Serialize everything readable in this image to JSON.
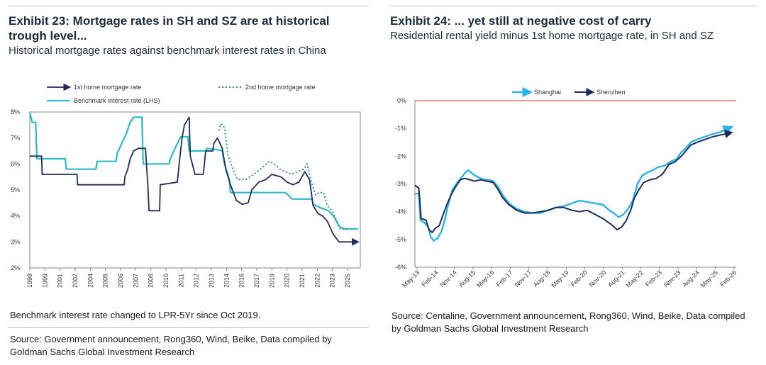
{
  "exhibit23": {
    "title": "Exhibit 23: Mortgage rates in SH and SZ are at historical trough level...",
    "subtitle": "Historical mortgage rates against benchmark interest rates in China",
    "note": "Benchmark interest rate changed to LPR-5Yr since Oct 2019.",
    "source": "Source: Government announcement, Rong360, Wind, Beike, Data compiled by Goldman Sachs Global Investment Research"
  },
  "exhibit24": {
    "title": "Exhibit 24: ... yet still at negative cost of carry",
    "subtitle": "Residential rental yield minus 1st home mortgage rate, in SH and SZ",
    "source": "Source: Centaline, Government announcement, Rong360, Wind, Beike, Data compiled by Goldman Sachs Global Investment Research"
  },
  "chart_data": [
    {
      "type": "line",
      "title": "Historical mortgage rates against benchmark interest rates in China",
      "ylim": [
        2,
        8
      ],
      "y_ticks": [
        "2%",
        "3%",
        "4%",
        "5%",
        "6%",
        "7%",
        "8%"
      ],
      "x_ticks": [
        "1998",
        "1999",
        "2001",
        "2002",
        "2004",
        "2005",
        "2006",
        "2007",
        "2008",
        "2010",
        "2011",
        "2012",
        "2013",
        "2014",
        "2016",
        "2017",
        "2019",
        "2020",
        "2021",
        "2022",
        "2023",
        "2025"
      ],
      "legend": [
        "1st home mortgage rate",
        "2nd home mortgage rate",
        "Benchmark interest rate (LHS)"
      ],
      "colors": {
        "first": "#1f2d5c",
        "second": "#2e8f8a",
        "bench": "#2fb8c6"
      },
      "series": [
        {
          "name": "1st home mortgage rate",
          "points": [
            [
              1998.0,
              6.3
            ],
            [
              1999.0,
              6.3
            ],
            [
              1999.05,
              5.6
            ],
            [
              2002.0,
              5.6
            ],
            [
              2002.05,
              5.2
            ],
            [
              2006.0,
              5.2
            ],
            [
              2006.05,
              5.5
            ],
            [
              2006.3,
              5.8
            ],
            [
              2006.5,
              6.2
            ],
            [
              2006.8,
              6.5
            ],
            [
              2007.2,
              6.6
            ],
            [
              2007.8,
              6.6
            ],
            [
              2008.0,
              5.2
            ],
            [
              2008.1,
              4.2
            ],
            [
              2009.0,
              4.2
            ],
            [
              2009.05,
              5.2
            ],
            [
              2010.5,
              5.3
            ],
            [
              2010.7,
              6.2
            ],
            [
              2010.9,
              7.0
            ],
            [
              2011.1,
              7.5
            ],
            [
              2011.5,
              7.8
            ],
            [
              2011.6,
              6.3
            ],
            [
              2012.0,
              5.6
            ],
            [
              2012.7,
              5.6
            ],
            [
              2012.9,
              6.5
            ],
            [
              2013.5,
              6.5
            ],
            [
              2013.6,
              6.8
            ],
            [
              2013.9,
              7.0
            ],
            [
              2014.3,
              6.6
            ],
            [
              2014.6,
              5.8
            ],
            [
              2015.0,
              5.2
            ],
            [
              2015.5,
              4.6
            ],
            [
              2016.0,
              4.45
            ],
            [
              2016.5,
              4.5
            ],
            [
              2016.8,
              5.0
            ],
            [
              2017.4,
              5.3
            ],
            [
              2018.0,
              5.4
            ],
            [
              2018.5,
              5.6
            ],
            [
              2019.3,
              5.5
            ],
            [
              2019.8,
              5.3
            ],
            [
              2020.3,
              5.2
            ],
            [
              2020.8,
              5.3
            ],
            [
              2021.3,
              5.7
            ],
            [
              2021.7,
              5.4
            ],
            [
              2022.0,
              4.4
            ],
            [
              2022.4,
              4.1
            ],
            [
              2022.8,
              4.0
            ],
            [
              2023.2,
              3.8
            ],
            [
              2023.7,
              3.3
            ],
            [
              2024.2,
              3.0
            ],
            [
              2025.2,
              3.0
            ],
            [
              2025.8,
              3.0
            ]
          ]
        },
        {
          "name": "2nd home mortgage rate",
          "points": [
            [
              2014.0,
              7.3
            ],
            [
              2014.2,
              7.55
            ],
            [
              2014.5,
              7.4
            ],
            [
              2014.8,
              6.3
            ],
            [
              2015.2,
              5.8
            ],
            [
              2015.6,
              5.4
            ],
            [
              2016.3,
              5.4
            ],
            [
              2016.8,
              5.55
            ],
            [
              2017.3,
              5.7
            ],
            [
              2017.8,
              5.9
            ],
            [
              2018.3,
              6.1
            ],
            [
              2018.7,
              6.0
            ],
            [
              2019.2,
              5.8
            ],
            [
              2019.6,
              5.7
            ],
            [
              2020.2,
              5.6
            ],
            [
              2020.7,
              5.7
            ],
            [
              2021.2,
              5.8
            ],
            [
              2021.5,
              6.0
            ],
            [
              2021.8,
              5.4
            ],
            [
              2022.2,
              4.8
            ],
            [
              2022.5,
              4.9
            ],
            [
              2022.9,
              4.9
            ],
            [
              2023.2,
              4.4
            ],
            [
              2023.6,
              4.2
            ],
            [
              2024.0,
              3.8
            ],
            [
              2024.3,
              3.5
            ],
            [
              2025.0,
              3.5
            ]
          ]
        },
        {
          "name": "Benchmark interest rate (LHS)",
          "points": [
            [
              1998.0,
              8.0
            ],
            [
              1998.2,
              7.6
            ],
            [
              1998.5,
              7.6
            ],
            [
              1998.6,
              6.2
            ],
            [
              2001.0,
              6.2
            ],
            [
              2001.1,
              5.8
            ],
            [
              2003.6,
              5.8
            ],
            [
              2003.7,
              6.1
            ],
            [
              2005.3,
              6.1
            ],
            [
              2005.4,
              6.4
            ],
            [
              2005.8,
              6.8
            ],
            [
              2006.2,
              7.2
            ],
            [
              2006.5,
              7.6
            ],
            [
              2006.8,
              7.8
            ],
            [
              2007.5,
              7.8
            ],
            [
              2007.6,
              6.0
            ],
            [
              2009.8,
              6.0
            ],
            [
              2009.9,
              6.2
            ],
            [
              2010.4,
              6.7
            ],
            [
              2010.8,
              7.05
            ],
            [
              2011.4,
              7.05
            ],
            [
              2011.5,
              6.5
            ],
            [
              2012.0,
              6.5
            ],
            [
              2012.9,
              6.5
            ],
            [
              2013.0,
              6.6
            ],
            [
              2013.9,
              6.55
            ],
            [
              2014.3,
              6.5
            ],
            [
              2014.5,
              6.0
            ],
            [
              2014.9,
              5.4
            ],
            [
              2015.0,
              4.9
            ],
            [
              2019.6,
              4.9
            ],
            [
              2019.8,
              4.85
            ],
            [
              2020.2,
              4.65
            ],
            [
              2021.9,
              4.65
            ],
            [
              2022.0,
              4.45
            ],
            [
              2022.7,
              4.3
            ],
            [
              2023.3,
              4.2
            ],
            [
              2023.8,
              3.95
            ],
            [
              2024.2,
              3.6
            ],
            [
              2024.6,
              3.5
            ],
            [
              2025.8,
              3.5
            ]
          ]
        }
      ]
    },
    {
      "type": "line",
      "title": "Residential rental yield minus 1st home mortgage rate, in SH and SZ",
      "ylim": [
        -6,
        0
      ],
      "y_ticks": [
        "0%",
        "-1%",
        "-2%",
        "-3%",
        "-4%",
        "-5%",
        "-6%"
      ],
      "x_ticks": [
        "May-13",
        "Feb-14",
        "Nov-14",
        "Aug-15",
        "May-16",
        "Feb-17",
        "Nov-17",
        "Aug-18",
        "May-19",
        "Feb-20",
        "Nov-20",
        "Aug-21",
        "May-22",
        "Feb-23",
        "Nov-23",
        "Aug-24",
        "May-25",
        "Feb-26"
      ],
      "legend": [
        "Shanghai",
        "Shenzhen"
      ],
      "colors": {
        "Shanghai": "#2db2e6",
        "Shenzhen": "#1c2b5a"
      },
      "series": [
        {
          "name": "Shanghai",
          "points": [
            [
              0.0,
              -3.35
            ],
            [
              0.25,
              -3.35
            ],
            [
              0.35,
              -4.3
            ],
            [
              0.6,
              -4.4
            ],
            [
              0.85,
              -4.55
            ],
            [
              1.0,
              -4.9
            ],
            [
              1.2,
              -5.05
            ],
            [
              1.45,
              -4.95
            ],
            [
              1.7,
              -4.7
            ],
            [
              1.9,
              -4.3
            ],
            [
              2.1,
              -3.8
            ],
            [
              2.4,
              -3.2
            ],
            [
              2.7,
              -2.95
            ],
            [
              3.0,
              -2.75
            ],
            [
              3.2,
              -2.6
            ],
            [
              3.4,
              -2.5
            ],
            [
              3.7,
              -2.65
            ],
            [
              4.0,
              -2.75
            ],
            [
              4.4,
              -2.85
            ],
            [
              4.7,
              -2.85
            ],
            [
              5.0,
              -2.9
            ],
            [
              5.3,
              -3.1
            ],
            [
              5.6,
              -3.4
            ],
            [
              6.0,
              -3.7
            ],
            [
              6.5,
              -3.9
            ],
            [
              7.0,
              -4.0
            ],
            [
              7.5,
              -4.05
            ],
            [
              8.0,
              -4.05
            ],
            [
              8.5,
              -3.95
            ],
            [
              9.0,
              -3.85
            ],
            [
              9.5,
              -3.8
            ],
            [
              10.0,
              -3.7
            ],
            [
              10.5,
              -3.6
            ],
            [
              11.0,
              -3.65
            ],
            [
              11.5,
              -3.7
            ],
            [
              12.0,
              -3.75
            ],
            [
              12.4,
              -3.95
            ],
            [
              12.8,
              -4.1
            ],
            [
              13.0,
              -4.2
            ],
            [
              13.3,
              -4.1
            ],
            [
              13.6,
              -3.9
            ],
            [
              13.9,
              -3.6
            ],
            [
              14.2,
              -3.0
            ],
            [
              14.5,
              -2.7
            ],
            [
              14.8,
              -2.6
            ],
            [
              15.2,
              -2.5
            ],
            [
              15.5,
              -2.4
            ],
            [
              15.9,
              -2.35
            ],
            [
              16.3,
              -2.2
            ],
            [
              16.7,
              -2.1
            ],
            [
              17.0,
              -1.85
            ],
            [
              17.3,
              -1.7
            ],
            [
              17.6,
              -1.5
            ],
            [
              18.0,
              -1.4
            ],
            [
              18.5,
              -1.3
            ],
            [
              19.0,
              -1.2
            ],
            [
              19.4,
              -1.15
            ],
            [
              19.8,
              -1.05
            ],
            [
              20.2,
              -0.95
            ]
          ]
        },
        {
          "name": "Shenzhen",
          "points": [
            [
              0.0,
              -3.05
            ],
            [
              0.25,
              -3.15
            ],
            [
              0.4,
              -4.25
            ],
            [
              0.7,
              -4.3
            ],
            [
              0.9,
              -4.65
            ],
            [
              1.1,
              -4.75
            ],
            [
              1.3,
              -4.6
            ],
            [
              1.55,
              -4.5
            ],
            [
              1.8,
              -4.1
            ],
            [
              2.0,
              -3.8
            ],
            [
              2.3,
              -3.4
            ],
            [
              2.6,
              -3.1
            ],
            [
              2.9,
              -2.85
            ],
            [
              3.2,
              -2.8
            ],
            [
              3.5,
              -2.85
            ],
            [
              3.8,
              -2.9
            ],
            [
              4.2,
              -2.85
            ],
            [
              4.6,
              -2.9
            ],
            [
              5.0,
              -2.95
            ],
            [
              5.3,
              -3.2
            ],
            [
              5.6,
              -3.5
            ],
            [
              6.0,
              -3.75
            ],
            [
              6.5,
              -3.95
            ],
            [
              7.0,
              -4.05
            ],
            [
              7.5,
              -4.05
            ],
            [
              8.0,
              -4.0
            ],
            [
              8.5,
              -3.95
            ],
            [
              9.0,
              -3.85
            ],
            [
              9.5,
              -3.85
            ],
            [
              10.0,
              -3.95
            ],
            [
              10.5,
              -4.0
            ],
            [
              11.0,
              -3.95
            ],
            [
              11.5,
              -4.1
            ],
            [
              12.0,
              -4.25
            ],
            [
              12.5,
              -4.45
            ],
            [
              12.9,
              -4.65
            ],
            [
              13.2,
              -4.55
            ],
            [
              13.5,
              -4.3
            ],
            [
              13.8,
              -3.9
            ],
            [
              14.0,
              -3.5
            ],
            [
              14.3,
              -3.2
            ],
            [
              14.6,
              -2.95
            ],
            [
              15.0,
              -2.85
            ],
            [
              15.4,
              -2.8
            ],
            [
              15.8,
              -2.65
            ],
            [
              16.2,
              -2.3
            ],
            [
              16.6,
              -2.2
            ],
            [
              17.0,
              -2.0
            ],
            [
              17.3,
              -1.8
            ],
            [
              17.6,
              -1.6
            ],
            [
              18.0,
              -1.5
            ],
            [
              18.5,
              -1.4
            ],
            [
              19.0,
              -1.3
            ],
            [
              19.4,
              -1.25
            ],
            [
              19.8,
              -1.2
            ],
            [
              20.2,
              -1.15
            ]
          ]
        }
      ]
    }
  ]
}
